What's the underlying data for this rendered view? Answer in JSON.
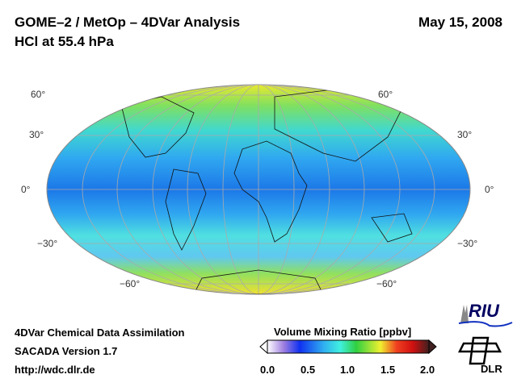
{
  "header": {
    "title": "GOME–2 / MetOp – 4DVar Analysis",
    "subtitle": "HCl at 55.4 hPa",
    "date": "May 15, 2008"
  },
  "map": {
    "lat_labels_left": [
      "60°",
      "30°",
      "0°",
      "−30°",
      "−60°"
    ],
    "lat_labels_right": [
      "60°",
      "30°",
      "0°",
      "−30°",
      "−60°"
    ]
  },
  "footer": {
    "line1": "4DVar Chemical Data Assimilation",
    "line2": "SACADA Version 1.7",
    "line3": "http://wdc.dlr.de"
  },
  "colorbar": {
    "title": "Volume Mixing Ratio [ppbv]",
    "ticks": [
      "0.0",
      "0.5",
      "1.0",
      "1.5",
      "2.0"
    ],
    "min": 0.0,
    "max": 2.0
  },
  "logos": {
    "riu": "RIU",
    "dlr": "DLR"
  }
}
